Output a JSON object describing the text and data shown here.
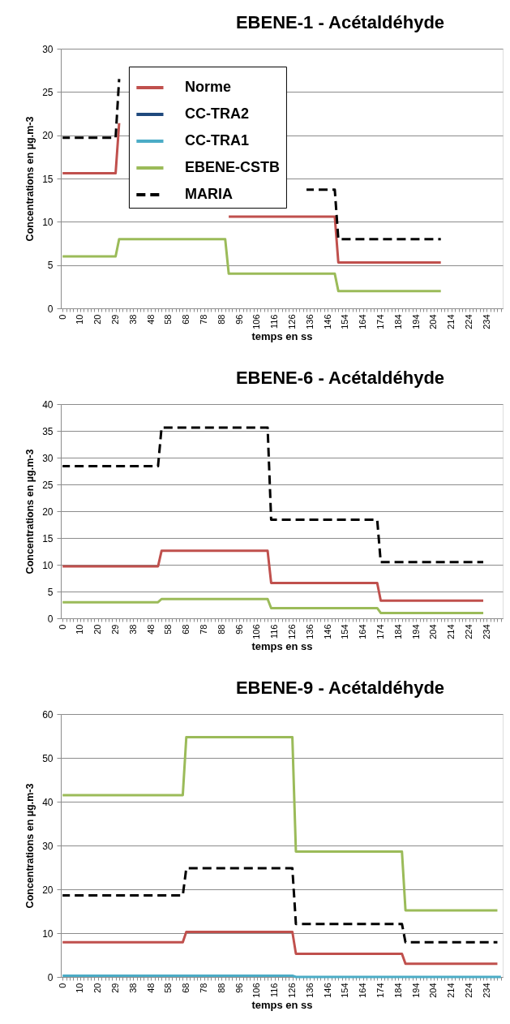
{
  "chart_data": [
    {
      "type": "line",
      "title": "EBENE-1 - Acétaldéhyde",
      "xlabel": "temps en ss",
      "ylabel": "Concentrations en µg.m-3",
      "ylim": [
        0,
        30
      ],
      "yticks": [
        0,
        5,
        10,
        15,
        20,
        25,
        30
      ],
      "grid": "y",
      "legend": "top left",
      "line_style": "solid",
      "categories": [
        "0",
        null,
        null,
        null,
        null,
        "10",
        null,
        null,
        null,
        null,
        "20",
        null,
        null,
        null,
        null,
        "29",
        null,
        null,
        null,
        null,
        "38",
        null,
        null,
        null,
        null,
        "48",
        null,
        null,
        null,
        null,
        "58",
        null,
        null,
        null,
        null,
        "68",
        null,
        null,
        null,
        null,
        "78",
        null,
        null,
        null,
        null,
        "88",
        null,
        null,
        null,
        null,
        "96",
        null,
        null,
        null,
        null,
        "106",
        null,
        null,
        null,
        null,
        "116",
        null,
        null,
        null,
        null,
        "126",
        null,
        null,
        null,
        null,
        "136",
        null,
        null,
        null,
        null,
        "146",
        null,
        null,
        null,
        null,
        "154",
        null,
        null,
        null,
        null,
        "164",
        null,
        null,
        null,
        null,
        "174",
        null,
        null,
        null,
        null,
        "184",
        null,
        null,
        null,
        null,
        "194",
        null,
        null,
        null,
        null,
        "204",
        null,
        null,
        null,
        null,
        "214",
        null,
        null,
        null,
        null,
        "224",
        null,
        null,
        null,
        null,
        "234",
        null,
        null,
        null,
        null
      ],
      "series": [
        {
          "name": "Norme",
          "color": "#c0504d",
          "values": [
            15.6,
            15.6,
            15.6,
            15.6,
            15.6,
            15.6,
            15.6,
            15.6,
            15.6,
            15.6,
            15.6,
            15.6,
            15.6,
            15.6,
            15.6,
            15.6,
            21.4,
            null,
            null,
            null,
            null,
            null,
            null,
            null,
            null,
            null,
            null,
            null,
            null,
            null,
            null,
            null,
            null,
            null,
            null,
            null,
            null,
            null,
            null,
            null,
            null,
            null,
            null,
            null,
            null,
            null,
            null,
            10.6,
            10.6,
            10.6,
            10.6,
            10.6,
            10.6,
            10.6,
            10.6,
            10.6,
            10.6,
            10.6,
            10.6,
            10.6,
            10.6,
            10.6,
            10.6,
            10.6,
            10.6,
            10.6,
            10.6,
            10.6,
            10.6,
            10.6,
            10.6,
            10.6,
            10.6,
            10.6,
            10.6,
            10.6,
            10.6,
            10.6,
            5.3,
            5.3,
            5.3,
            5.3,
            5.3,
            5.3,
            5.3,
            5.3,
            5.3,
            5.3,
            5.3,
            5.3,
            5.3,
            5.3,
            5.3,
            5.3,
            5.3,
            5.3,
            5.3,
            5.3,
            5.3,
            5.3,
            5.3,
            5.3,
            5.3,
            5.3,
            5.3,
            5.3,
            5.3,
            5.3,
            null,
            null,
            null,
            null,
            null,
            null,
            null,
            null,
            null,
            null,
            null,
            null,
            null,
            null,
            null,
            null,
            null
          ]
        },
        {
          "name": "CC-TRA2",
          "color": "#1f497d",
          "values": [
            null,
            null,
            null,
            null,
            null,
            null,
            null,
            null,
            null,
            null,
            null,
            null,
            null,
            null,
            null,
            null,
            null,
            null,
            null,
            null,
            null,
            null,
            null,
            null,
            null,
            null,
            null,
            null,
            null,
            null,
            null,
            null,
            null,
            null,
            null,
            null,
            null,
            null,
            null,
            null,
            null,
            null,
            null,
            null,
            null,
            null,
            null,
            null,
            null,
            null,
            null,
            null,
            null,
            null,
            null,
            null,
            null,
            null,
            null,
            null,
            null,
            null,
            null,
            null,
            null,
            null,
            null,
            null,
            null,
            null,
            null,
            null,
            null,
            null,
            null,
            null,
            null,
            null,
            null,
            null,
            null,
            null,
            null,
            null,
            null,
            null,
            null,
            null,
            null,
            null,
            null,
            null,
            null,
            null,
            null,
            null,
            null,
            null,
            null,
            null,
            null,
            null,
            null,
            null,
            null,
            null,
            null,
            null,
            null,
            null,
            null,
            null,
            null,
            null,
            null,
            null,
            null,
            null,
            null,
            null,
            null,
            null,
            null,
            null,
            null
          ]
        },
        {
          "name": "CC-TRA1",
          "color": "#4bacc6",
          "values": [
            null,
            null,
            null,
            null,
            null,
            null,
            null,
            null,
            null,
            null,
            null,
            null,
            null,
            null,
            null,
            null,
            null,
            null,
            null,
            null,
            null,
            null,
            null,
            null,
            null,
            null,
            null,
            null,
            null,
            null,
            null,
            null,
            null,
            null,
            null,
            null,
            null,
            null,
            null,
            null,
            null,
            null,
            null,
            null,
            null,
            null,
            null,
            null,
            null,
            null,
            null,
            null,
            null,
            null,
            null,
            null,
            null,
            null,
            null,
            null,
            null,
            null,
            null,
            null,
            null,
            null,
            null,
            null,
            null,
            null,
            null,
            null,
            null,
            null,
            null,
            null,
            null,
            null,
            null,
            null,
            null,
            null,
            null,
            null,
            null,
            null,
            null,
            null,
            null,
            null,
            null,
            null,
            null,
            null,
            null,
            null,
            null,
            null,
            null,
            null,
            null,
            null,
            null,
            null,
            null,
            null,
            null,
            null,
            null,
            null,
            null,
            null,
            null,
            null,
            null,
            null,
            null,
            null,
            null,
            null,
            null,
            null,
            null,
            null,
            null
          ]
        },
        {
          "name": "EBENE-CSTB",
          "color": "#9bbb59",
          "values": [
            6,
            6,
            6,
            6,
            6,
            6,
            6,
            6,
            6,
            6,
            6,
            6,
            6,
            6,
            6,
            6,
            8,
            8,
            8,
            8,
            8,
            8,
            8,
            8,
            8,
            8,
            8,
            8,
            8,
            8,
            8,
            8,
            8,
            8,
            8,
            8,
            8,
            8,
            8,
            8,
            8,
            8,
            8,
            8,
            8,
            8,
            8,
            4,
            4,
            4,
            4,
            4,
            4,
            4,
            4,
            4,
            4,
            4,
            4,
            4,
            4,
            4,
            4,
            4,
            4,
            4,
            4,
            4,
            4,
            4,
            4,
            4,
            4,
            4,
            4,
            4,
            4,
            4,
            2,
            2,
            2,
            2,
            2,
            2,
            2,
            2,
            2,
            2,
            2,
            2,
            2,
            2,
            2,
            2,
            2,
            2,
            2,
            2,
            2,
            2,
            2,
            2,
            2,
            2,
            2,
            2,
            2,
            2,
            null,
            null,
            null,
            null,
            null,
            null,
            null,
            null,
            null,
            null,
            null,
            null,
            null,
            null,
            null,
            null,
            null
          ]
        },
        {
          "name": "MARIA",
          "color": "#000000",
          "line_style": "dashed",
          "values": [
            19.7,
            19.7,
            19.7,
            19.7,
            19.7,
            19.7,
            19.7,
            19.7,
            19.7,
            19.7,
            19.7,
            19.7,
            19.7,
            19.7,
            19.7,
            19.7,
            26.5,
            null,
            null,
            null,
            null,
            null,
            null,
            null,
            null,
            null,
            null,
            null,
            null,
            null,
            null,
            null,
            null,
            null,
            null,
            null,
            null,
            null,
            null,
            null,
            null,
            null,
            null,
            null,
            null,
            null,
            null,
            null,
            null,
            null,
            null,
            null,
            null,
            null,
            null,
            null,
            null,
            null,
            null,
            null,
            null,
            null,
            null,
            null,
            null,
            null,
            null,
            null,
            null,
            13.7,
            13.7,
            13.7,
            13.7,
            13.7,
            13.7,
            13.7,
            13.7,
            13.7,
            8,
            8,
            8,
            8,
            8,
            8,
            8,
            8,
            8,
            8,
            8,
            8,
            8,
            8,
            8,
            8,
            8,
            8,
            8,
            8,
            8,
            8,
            8,
            8,
            8,
            8,
            8,
            8,
            8,
            8,
            null,
            null,
            null,
            null,
            null,
            null,
            null,
            null,
            null,
            null,
            null,
            null,
            null,
            null,
            null,
            null,
            null
          ]
        }
      ]
    },
    {
      "type": "line",
      "title": "EBENE-6 - Acétaldéhyde",
      "xlabel": "temps en ss",
      "ylabel": "Concentrations en µg.m-3",
      "ylim": [
        0,
        40
      ],
      "yticks": [
        0,
        5,
        10,
        15,
        20,
        25,
        30,
        35,
        40
      ],
      "grid": "y",
      "line_style": "solid",
      "categories": [
        "0",
        null,
        null,
        null,
        null,
        "10",
        null,
        null,
        null,
        null,
        "20",
        null,
        null,
        null,
        null,
        "29",
        null,
        null,
        null,
        null,
        "38",
        null,
        null,
        null,
        null,
        "48",
        null,
        null,
        null,
        null,
        "58",
        null,
        null,
        null,
        null,
        "68",
        null,
        null,
        null,
        null,
        "78",
        null,
        null,
        null,
        null,
        "88",
        null,
        null,
        null,
        null,
        "96",
        null,
        null,
        null,
        null,
        "106",
        null,
        null,
        null,
        null,
        "116",
        null,
        null,
        null,
        null,
        "126",
        null,
        null,
        null,
        null,
        "136",
        null,
        null,
        null,
        null,
        "146",
        null,
        null,
        null,
        null,
        "154",
        null,
        null,
        null,
        null,
        "164",
        null,
        null,
        null,
        null,
        "174",
        null,
        null,
        null,
        null,
        "184",
        null,
        null,
        null,
        null,
        "194",
        null,
        null,
        null,
        null,
        "204",
        null,
        null,
        null,
        null,
        "214",
        null,
        null,
        null,
        null,
        "224",
        null,
        null,
        null,
        null,
        "234",
        null,
        null,
        null,
        null
      ],
      "series": [
        {
          "color": "#c0504d",
          "values": [
            9.7,
            9.7,
            9.7,
            9.7,
            9.7,
            9.7,
            9.7,
            9.7,
            9.7,
            9.7,
            9.7,
            9.7,
            9.7,
            9.7,
            9.7,
            9.7,
            9.7,
            9.7,
            9.7,
            9.7,
            9.7,
            9.7,
            9.7,
            9.7,
            9.7,
            9.7,
            9.7,
            9.7,
            12.6,
            12.6,
            12.6,
            12.6,
            12.6,
            12.6,
            12.6,
            12.6,
            12.6,
            12.6,
            12.6,
            12.6,
            12.6,
            12.6,
            12.6,
            12.6,
            12.6,
            12.6,
            12.6,
            12.6,
            12.6,
            12.6,
            12.6,
            12.6,
            12.6,
            12.6,
            12.6,
            12.6,
            12.6,
            12.6,
            12.6,
            6.6,
            6.6,
            6.6,
            6.6,
            6.6,
            6.6,
            6.6,
            6.6,
            6.6,
            6.6,
            6.6,
            6.6,
            6.6,
            6.6,
            6.6,
            6.6,
            6.6,
            6.6,
            6.6,
            6.6,
            6.6,
            6.6,
            6.6,
            6.6,
            6.6,
            6.6,
            6.6,
            6.6,
            6.6,
            6.6,
            6.6,
            3.3,
            3.3,
            3.3,
            3.3,
            3.3,
            3.3,
            3.3,
            3.3,
            3.3,
            3.3,
            3.3,
            3.3,
            3.3,
            3.3,
            3.3,
            3.3,
            3.3,
            3.3,
            3.3,
            3.3,
            3.3,
            3.3,
            3.3,
            3.3,
            3.3,
            3.3,
            3.3,
            3.3,
            3.3,
            3.3,
            null,
            null,
            null,
            null,
            null
          ]
        },
        {
          "color": "#9bbb59",
          "values": [
            3,
            3,
            3,
            3,
            3,
            3,
            3,
            3,
            3,
            3,
            3,
            3,
            3,
            3,
            3,
            3,
            3,
            3,
            3,
            3,
            3,
            3,
            3,
            3,
            3,
            3,
            3,
            3,
            3.6,
            3.6,
            3.6,
            3.6,
            3.6,
            3.6,
            3.6,
            3.6,
            3.6,
            3.6,
            3.6,
            3.6,
            3.6,
            3.6,
            3.6,
            3.6,
            3.6,
            3.6,
            3.6,
            3.6,
            3.6,
            3.6,
            3.6,
            3.6,
            3.6,
            3.6,
            3.6,
            3.6,
            3.6,
            3.6,
            3.6,
            1.9,
            1.9,
            1.9,
            1.9,
            1.9,
            1.9,
            1.9,
            1.9,
            1.9,
            1.9,
            1.9,
            1.9,
            1.9,
            1.9,
            1.9,
            1.9,
            1.9,
            1.9,
            1.9,
            1.9,
            1.9,
            1.9,
            1.9,
            1.9,
            1.9,
            1.9,
            1.9,
            1.9,
            1.9,
            1.9,
            1.9,
            1,
            1,
            1,
            1,
            1,
            1,
            1,
            1,
            1,
            1,
            1,
            1,
            1,
            1,
            1,
            1,
            1,
            1,
            1,
            1,
            1,
            1,
            1,
            1,
            1,
            1,
            1,
            1,
            1,
            1,
            null,
            null,
            null,
            null,
            null
          ]
        },
        {
          "color": "#000000",
          "line_style": "dashed",
          "values": [
            28.4,
            28.4,
            28.4,
            28.4,
            28.4,
            28.4,
            28.4,
            28.4,
            28.4,
            28.4,
            28.4,
            28.4,
            28.4,
            28.4,
            28.4,
            28.4,
            28.4,
            28.4,
            28.4,
            28.4,
            28.4,
            28.4,
            28.4,
            28.4,
            28.4,
            28.4,
            28.4,
            28.4,
            35.6,
            35.6,
            35.6,
            35.6,
            35.6,
            35.6,
            35.6,
            35.6,
            35.6,
            35.6,
            35.6,
            35.6,
            35.6,
            35.6,
            35.6,
            35.6,
            35.6,
            35.6,
            35.6,
            35.6,
            35.6,
            35.6,
            35.6,
            35.6,
            35.6,
            35.6,
            35.6,
            35.6,
            35.6,
            35.6,
            35.6,
            18.4,
            18.4,
            18.4,
            18.4,
            18.4,
            18.4,
            18.4,
            18.4,
            18.4,
            18.4,
            18.4,
            18.4,
            18.4,
            18.4,
            18.4,
            18.4,
            18.4,
            18.4,
            18.4,
            18.4,
            18.4,
            18.4,
            18.4,
            18.4,
            18.4,
            18.4,
            18.4,
            18.4,
            18.4,
            18.4,
            18.4,
            10.5,
            10.5,
            10.5,
            10.5,
            10.5,
            10.5,
            10.5,
            10.5,
            10.5,
            10.5,
            10.5,
            10.5,
            10.5,
            10.5,
            10.5,
            10.5,
            10.5,
            10.5,
            10.5,
            10.5,
            10.5,
            10.5,
            10.5,
            10.5,
            10.5,
            10.5,
            10.5,
            10.5,
            10.5,
            10.5,
            null,
            null,
            null,
            null,
            null
          ]
        }
      ]
    },
    {
      "type": "line",
      "title": "EBENE-9 - Acétaldéhyde",
      "xlabel": "temps en ss",
      "ylabel": "Concentrations en µg.m-3",
      "ylim": [
        0,
        60
      ],
      "yticks": [
        0,
        10,
        20,
        30,
        40,
        50,
        60
      ],
      "grid": "y",
      "line_style": "solid",
      "categories": [
        "0",
        null,
        null,
        null,
        null,
        "10",
        null,
        null,
        null,
        null,
        "20",
        null,
        null,
        null,
        null,
        "29",
        null,
        null,
        null,
        null,
        "38",
        null,
        null,
        null,
        null,
        "48",
        null,
        null,
        null,
        null,
        "58",
        null,
        null,
        null,
        null,
        "68",
        null,
        null,
        null,
        null,
        "78",
        null,
        null,
        null,
        null,
        "88",
        null,
        null,
        null,
        null,
        "96",
        null,
        null,
        null,
        null,
        "106",
        null,
        null,
        null,
        null,
        "116",
        null,
        null,
        null,
        null,
        "126",
        null,
        null,
        null,
        null,
        "136",
        null,
        null,
        null,
        null,
        "146",
        null,
        null,
        null,
        null,
        "154",
        null,
        null,
        null,
        null,
        "164",
        null,
        null,
        null,
        null,
        "174",
        null,
        null,
        null,
        null,
        "184",
        null,
        null,
        null,
        null,
        "194",
        null,
        null,
        null,
        null,
        "204",
        null,
        null,
        null,
        null,
        "214",
        null,
        null,
        null,
        null,
        "224",
        null,
        null,
        null,
        null,
        "234",
        null,
        null,
        null,
        null
      ],
      "series": [
        {
          "color": "#c0504d",
          "values": [
            7.9,
            7.9,
            7.9,
            7.9,
            7.9,
            7.9,
            7.9,
            7.9,
            7.9,
            7.9,
            7.9,
            7.9,
            7.9,
            7.9,
            7.9,
            7.9,
            7.9,
            7.9,
            7.9,
            7.9,
            7.9,
            7.9,
            7.9,
            7.9,
            7.9,
            7.9,
            7.9,
            7.9,
            7.9,
            7.9,
            7.9,
            7.9,
            7.9,
            7.9,
            7.9,
            10.3,
            10.3,
            10.3,
            10.3,
            10.3,
            10.3,
            10.3,
            10.3,
            10.3,
            10.3,
            10.3,
            10.3,
            10.3,
            10.3,
            10.3,
            10.3,
            10.3,
            10.3,
            10.3,
            10.3,
            10.3,
            10.3,
            10.3,
            10.3,
            10.3,
            10.3,
            10.3,
            10.3,
            10.3,
            10.3,
            10.3,
            5.3,
            5.3,
            5.3,
            5.3,
            5.3,
            5.3,
            5.3,
            5.3,
            5.3,
            5.3,
            5.3,
            5.3,
            5.3,
            5.3,
            5.3,
            5.3,
            5.3,
            5.3,
            5.3,
            5.3,
            5.3,
            5.3,
            5.3,
            5.3,
            5.3,
            5.3,
            5.3,
            5.3,
            5.3,
            5.3,
            5.3,
            3,
            3,
            3,
            3,
            3,
            3,
            3,
            3,
            3,
            3,
            3,
            3,
            3,
            3,
            3,
            3,
            3,
            3,
            3,
            3,
            3,
            3,
            3,
            3,
            3,
            3,
            3,
            null
          ]
        },
        {
          "color": "#4bacc6",
          "values": [
            0.3,
            0.3,
            0.3,
            0.3,
            0.3,
            0.3,
            0.3,
            0.3,
            0.3,
            0.3,
            0.3,
            0.3,
            0.3,
            0.3,
            0.3,
            0.3,
            0.3,
            0.3,
            0.3,
            0.3,
            0.3,
            0.3,
            0.3,
            0.3,
            0.3,
            0.3,
            0.3,
            0.3,
            0.3,
            0.3,
            0.3,
            0.3,
            0.3,
            0.3,
            0.3,
            0.3,
            0.3,
            0.3,
            0.3,
            0.3,
            0.3,
            0.3,
            0.3,
            0.3,
            0.3,
            0.3,
            0.3,
            0.3,
            0.3,
            0.3,
            0.3,
            0.3,
            0.3,
            0.3,
            0.3,
            0.3,
            0.3,
            0.3,
            0.3,
            0.3,
            0.3,
            0.3,
            0.3,
            0.3,
            0.3,
            0.3,
            0,
            0,
            0,
            0,
            0,
            0,
            0,
            0,
            0,
            0,
            0,
            0,
            0,
            0,
            0,
            0,
            0,
            0,
            0,
            0,
            0,
            0,
            0,
            0,
            0,
            0,
            0,
            0,
            0,
            0,
            0,
            0,
            0,
            0,
            0,
            0,
            0,
            0,
            0,
            0,
            0,
            0,
            0,
            0,
            0,
            0,
            0,
            0,
            0,
            0,
            0,
            0,
            0,
            0,
            0,
            0,
            0,
            0,
            0
          ]
        },
        {
          "color": "#9bbb59",
          "values": [
            41.5,
            41.5,
            41.5,
            41.5,
            41.5,
            41.5,
            41.5,
            41.5,
            41.5,
            41.5,
            41.5,
            41.5,
            41.5,
            41.5,
            41.5,
            41.5,
            41.5,
            41.5,
            41.5,
            41.5,
            41.5,
            41.5,
            41.5,
            41.5,
            41.5,
            41.5,
            41.5,
            41.5,
            41.5,
            41.5,
            41.5,
            41.5,
            41.5,
            41.5,
            41.5,
            54.7,
            54.7,
            54.7,
            54.7,
            54.7,
            54.7,
            54.7,
            54.7,
            54.7,
            54.7,
            54.7,
            54.7,
            54.7,
            54.7,
            54.7,
            54.7,
            54.7,
            54.7,
            54.7,
            54.7,
            54.7,
            54.7,
            54.7,
            54.7,
            54.7,
            54.7,
            54.7,
            54.7,
            54.7,
            54.7,
            54.7,
            28.6,
            28.6,
            28.6,
            28.6,
            28.6,
            28.6,
            28.6,
            28.6,
            28.6,
            28.6,
            28.6,
            28.6,
            28.6,
            28.6,
            28.6,
            28.6,
            28.6,
            28.6,
            28.6,
            28.6,
            28.6,
            28.6,
            28.6,
            28.6,
            28.6,
            28.6,
            28.6,
            28.6,
            28.6,
            28.6,
            28.6,
            15.2,
            15.2,
            15.2,
            15.2,
            15.2,
            15.2,
            15.2,
            15.2,
            15.2,
            15.2,
            15.2,
            15.2,
            15.2,
            15.2,
            15.2,
            15.2,
            15.2,
            15.2,
            15.2,
            15.2,
            15.2,
            15.2,
            15.2,
            15.2,
            15.2,
            15.2,
            15.2,
            null
          ]
        },
        {
          "color": "#000000",
          "line_style": "dashed",
          "values": [
            18.6,
            18.6,
            18.6,
            18.6,
            18.6,
            18.6,
            18.6,
            18.6,
            18.6,
            18.6,
            18.6,
            18.6,
            18.6,
            18.6,
            18.6,
            18.6,
            18.6,
            18.6,
            18.6,
            18.6,
            18.6,
            18.6,
            18.6,
            18.6,
            18.6,
            18.6,
            18.6,
            18.6,
            18.6,
            18.6,
            18.6,
            18.6,
            18.6,
            18.6,
            18.6,
            24.8,
            24.8,
            24.8,
            24.8,
            24.8,
            24.8,
            24.8,
            24.8,
            24.8,
            24.8,
            24.8,
            24.8,
            24.8,
            24.8,
            24.8,
            24.8,
            24.8,
            24.8,
            24.8,
            24.8,
            24.8,
            24.8,
            24.8,
            24.8,
            24.8,
            24.8,
            24.8,
            24.8,
            24.8,
            24.8,
            24.8,
            12.1,
            12.1,
            12.1,
            12.1,
            12.1,
            12.1,
            12.1,
            12.1,
            12.1,
            12.1,
            12.1,
            12.1,
            12.1,
            12.1,
            12.1,
            12.1,
            12.1,
            12.1,
            12.1,
            12.1,
            12.1,
            12.1,
            12.1,
            12.1,
            12.1,
            12.1,
            12.1,
            12.1,
            12.1,
            12.1,
            12.1,
            7.9,
            7.9,
            7.9,
            7.9,
            7.9,
            7.9,
            7.9,
            7.9,
            7.9,
            7.9,
            7.9,
            7.9,
            7.9,
            7.9,
            7.9,
            7.9,
            7.9,
            7.9,
            7.9,
            7.9,
            7.9,
            7.9,
            7.9,
            7.9,
            7.9,
            7.9,
            7.9,
            null
          ]
        }
      ]
    }
  ]
}
